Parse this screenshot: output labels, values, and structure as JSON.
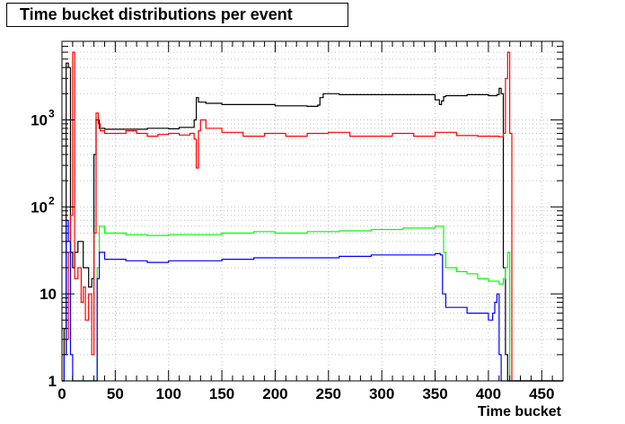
{
  "chart_data": {
    "type": "line",
    "title": "Time bucket distributions per event",
    "xlabel": "Time bucket",
    "ylabel": "",
    "xlim": [
      0,
      470
    ],
    "ylim": [
      1,
      8000
    ],
    "yscale": "log",
    "grid": true,
    "x_ticks": [
      0,
      50,
      100,
      150,
      200,
      250,
      300,
      350,
      400,
      450
    ],
    "y_ticks": [
      {
        "value": 1,
        "label": "1",
        "exp": ""
      },
      {
        "value": 10,
        "label": "10",
        "exp": ""
      },
      {
        "value": 100,
        "label": "10",
        "exp": "2"
      },
      {
        "value": 1000,
        "label": "10",
        "exp": "3"
      }
    ],
    "series": [
      {
        "color": "#000000",
        "points": [
          [
            0,
            1
          ],
          [
            2,
            4
          ],
          [
            4,
            4500
          ],
          [
            6,
            4000
          ],
          [
            8,
            30
          ],
          [
            10,
            20
          ],
          [
            12,
            30
          ],
          [
            15,
            40
          ],
          [
            20,
            20
          ],
          [
            25,
            12
          ],
          [
            28,
            15
          ],
          [
            30,
            400
          ],
          [
            32,
            1000
          ],
          [
            35,
            800
          ],
          [
            40,
            780
          ],
          [
            60,
            780
          ],
          [
            80,
            800
          ],
          [
            100,
            790
          ],
          [
            110,
            820
          ],
          [
            120,
            820
          ],
          [
            124,
            1000
          ],
          [
            126,
            1800
          ],
          [
            128,
            1600
          ],
          [
            135,
            1550
          ],
          [
            150,
            1500
          ],
          [
            170,
            1500
          ],
          [
            200,
            1450
          ],
          [
            230,
            1430
          ],
          [
            240,
            1480
          ],
          [
            242,
            1800
          ],
          [
            245,
            2000
          ],
          [
            260,
            1950
          ],
          [
            290,
            1950
          ],
          [
            320,
            1950
          ],
          [
            345,
            1950
          ],
          [
            350,
            1700
          ],
          [
            354,
            1500
          ],
          [
            356,
            1650
          ],
          [
            358,
            1850
          ],
          [
            360,
            1900
          ],
          [
            380,
            1950
          ],
          [
            400,
            1900
          ],
          [
            408,
            1950
          ],
          [
            410,
            2300
          ],
          [
            412,
            2000
          ],
          [
            414,
            20
          ],
          [
            416,
            2
          ],
          [
            418,
            1
          ],
          [
            420,
            1
          ],
          [
            470,
            1
          ]
        ]
      },
      {
        "color": "#ff0000",
        "points": [
          [
            0,
            1
          ],
          [
            2,
            2
          ],
          [
            4,
            3
          ],
          [
            6,
            30
          ],
          [
            8,
            80
          ],
          [
            10,
            6000
          ],
          [
            12,
            15
          ],
          [
            15,
            20
          ],
          [
            18,
            8
          ],
          [
            20,
            12
          ],
          [
            22,
            5
          ],
          [
            25,
            10
          ],
          [
            28,
            2
          ],
          [
            30,
            50
          ],
          [
            32,
            1200
          ],
          [
            34,
            900
          ],
          [
            36,
            750
          ],
          [
            40,
            700
          ],
          [
            50,
            700
          ],
          [
            60,
            750
          ],
          [
            70,
            700
          ],
          [
            80,
            650
          ],
          [
            90,
            680
          ],
          [
            100,
            700
          ],
          [
            110,
            670
          ],
          [
            120,
            700
          ],
          [
            124,
            600
          ],
          [
            126,
            280
          ],
          [
            128,
            750
          ],
          [
            130,
            1000
          ],
          [
            135,
            800
          ],
          [
            150,
            720
          ],
          [
            170,
            650
          ],
          [
            190,
            700
          ],
          [
            210,
            650
          ],
          [
            230,
            700
          ],
          [
            250,
            720
          ],
          [
            270,
            650
          ],
          [
            290,
            650
          ],
          [
            310,
            700
          ],
          [
            330,
            650
          ],
          [
            350,
            720
          ],
          [
            370,
            660
          ],
          [
            390,
            650
          ],
          [
            410,
            640
          ],
          [
            414,
            700
          ],
          [
            416,
            3000
          ],
          [
            418,
            6000
          ],
          [
            420,
            700
          ],
          [
            422,
            1
          ],
          [
            470,
            1
          ]
        ]
      },
      {
        "color": "#00ff00",
        "points": [
          [
            0,
            1
          ],
          [
            2,
            1
          ],
          [
            4,
            1
          ],
          [
            6,
            1
          ],
          [
            8,
            1
          ],
          [
            10,
            1
          ],
          [
            20,
            1
          ],
          [
            30,
            1
          ],
          [
            33,
            20
          ],
          [
            35,
            60
          ],
          [
            40,
            50
          ],
          [
            60,
            48
          ],
          [
            80,
            47
          ],
          [
            100,
            48
          ],
          [
            120,
            48
          ],
          [
            150,
            50
          ],
          [
            180,
            52
          ],
          [
            200,
            50
          ],
          [
            230,
            52
          ],
          [
            260,
            53
          ],
          [
            290,
            55
          ],
          [
            320,
            57
          ],
          [
            350,
            60
          ],
          [
            355,
            60
          ],
          [
            358,
            30
          ],
          [
            360,
            20
          ],
          [
            370,
            18
          ],
          [
            380,
            17
          ],
          [
            390,
            15
          ],
          [
            400,
            14
          ],
          [
            410,
            13
          ],
          [
            414,
            15
          ],
          [
            416,
            20
          ],
          [
            418,
            30
          ],
          [
            420,
            1
          ],
          [
            470,
            1
          ]
        ]
      },
      {
        "color": "#0000ff",
        "points": [
          [
            0,
            1
          ],
          [
            2,
            2
          ],
          [
            4,
            70
          ],
          [
            6,
            40
          ],
          [
            8,
            2
          ],
          [
            10,
            1
          ],
          [
            20,
            1
          ],
          [
            30,
            1
          ],
          [
            33,
            15
          ],
          [
            35,
            30
          ],
          [
            40,
            25
          ],
          [
            60,
            24
          ],
          [
            80,
            23
          ],
          [
            100,
            24
          ],
          [
            120,
            24
          ],
          [
            150,
            25
          ],
          [
            180,
            26
          ],
          [
            200,
            26
          ],
          [
            230,
            26
          ],
          [
            260,
            27
          ],
          [
            290,
            28
          ],
          [
            320,
            28
          ],
          [
            350,
            29
          ],
          [
            355,
            28
          ],
          [
            357,
            10
          ],
          [
            360,
            7
          ],
          [
            370,
            7
          ],
          [
            380,
            6
          ],
          [
            390,
            6
          ],
          [
            400,
            5
          ],
          [
            404,
            6
          ],
          [
            406,
            8
          ],
          [
            408,
            10
          ],
          [
            410,
            2
          ],
          [
            412,
            1
          ],
          [
            470,
            1
          ]
        ]
      }
    ]
  }
}
